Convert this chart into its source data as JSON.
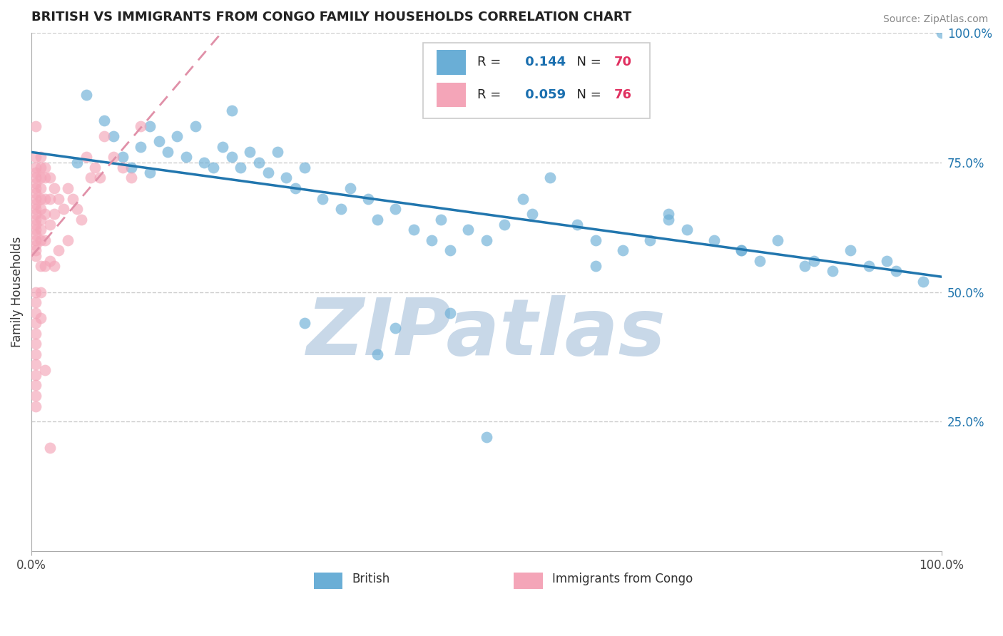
{
  "title": "BRITISH VS IMMIGRANTS FROM CONGO FAMILY HOUSEHOLDS CORRELATION CHART",
  "source_text": "Source: ZipAtlas.com",
  "ylabel": "Family Households",
  "xlim": [
    0,
    1
  ],
  "ylim": [
    0,
    1
  ],
  "british_color": "#6aaed6",
  "congo_color": "#f4a5b8",
  "british_R": 0.144,
  "british_N": 70,
  "congo_R": 0.059,
  "congo_N": 76,
  "legend_blue": "#1a6faf",
  "legend_red": "#e03060",
  "watermark": "ZIPatlas",
  "watermark_color": "#c8d8e8",
  "blue_line_color": "#2176ae",
  "pink_line_color": "#e090a8",
  "british_x": [
    0.05,
    0.08,
    0.09,
    0.1,
    0.11,
    0.12,
    0.13,
    0.14,
    0.15,
    0.16,
    0.17,
    0.18,
    0.19,
    0.2,
    0.21,
    0.22,
    0.23,
    0.24,
    0.25,
    0.26,
    0.27,
    0.28,
    0.29,
    0.3,
    0.32,
    0.34,
    0.35,
    0.37,
    0.38,
    0.4,
    0.42,
    0.44,
    0.45,
    0.46,
    0.48,
    0.5,
    0.52,
    0.55,
    0.57,
    0.6,
    0.62,
    0.65,
    0.68,
    0.7,
    0.72,
    0.75,
    0.78,
    0.8,
    0.82,
    0.85,
    0.88,
    0.9,
    0.92,
    0.95,
    0.98,
    1.0,
    0.06,
    0.13,
    0.22,
    0.3,
    0.38,
    0.46,
    0.54,
    0.62,
    0.7,
    0.78,
    0.86,
    0.94,
    0.5,
    0.4
  ],
  "british_y": [
    0.75,
    0.83,
    0.8,
    0.76,
    0.74,
    0.78,
    0.82,
    0.79,
    0.77,
    0.8,
    0.76,
    0.82,
    0.75,
    0.74,
    0.78,
    0.76,
    0.74,
    0.77,
    0.75,
    0.73,
    0.77,
    0.72,
    0.7,
    0.74,
    0.68,
    0.66,
    0.7,
    0.68,
    0.64,
    0.66,
    0.62,
    0.6,
    0.64,
    0.58,
    0.62,
    0.6,
    0.63,
    0.65,
    0.72,
    0.63,
    0.6,
    0.58,
    0.6,
    0.64,
    0.62,
    0.6,
    0.58,
    0.56,
    0.6,
    0.55,
    0.54,
    0.58,
    0.55,
    0.54,
    0.52,
    1.0,
    0.88,
    0.73,
    0.85,
    0.44,
    0.38,
    0.46,
    0.68,
    0.55,
    0.65,
    0.58,
    0.56,
    0.56,
    0.22,
    0.43
  ],
  "congo_x": [
    0.005,
    0.005,
    0.005,
    0.005,
    0.005,
    0.005,
    0.005,
    0.005,
    0.005,
    0.005,
    0.005,
    0.005,
    0.005,
    0.005,
    0.005,
    0.005,
    0.005,
    0.005,
    0.005,
    0.005,
    0.01,
    0.01,
    0.01,
    0.01,
    0.01,
    0.01,
    0.01,
    0.01,
    0.01,
    0.01,
    0.015,
    0.015,
    0.015,
    0.015,
    0.015,
    0.015,
    0.02,
    0.02,
    0.02,
    0.02,
    0.025,
    0.025,
    0.025,
    0.03,
    0.03,
    0.035,
    0.04,
    0.04,
    0.045,
    0.05,
    0.055,
    0.06,
    0.065,
    0.07,
    0.075,
    0.08,
    0.09,
    0.1,
    0.11,
    0.12,
    0.005,
    0.005,
    0.005,
    0.005,
    0.005,
    0.005,
    0.005,
    0.005,
    0.005,
    0.005,
    0.005,
    0.005,
    0.01,
    0.01,
    0.015,
    0.02
  ],
  "congo_y": [
    0.76,
    0.74,
    0.73,
    0.72,
    0.71,
    0.7,
    0.69,
    0.68,
    0.67,
    0.66,
    0.65,
    0.64,
    0.63,
    0.62,
    0.61,
    0.6,
    0.59,
    0.58,
    0.57,
    0.82,
    0.76,
    0.74,
    0.72,
    0.7,
    0.68,
    0.66,
    0.64,
    0.62,
    0.6,
    0.55,
    0.74,
    0.72,
    0.68,
    0.65,
    0.6,
    0.55,
    0.72,
    0.68,
    0.63,
    0.56,
    0.7,
    0.65,
    0.55,
    0.68,
    0.58,
    0.66,
    0.7,
    0.6,
    0.68,
    0.66,
    0.64,
    0.76,
    0.72,
    0.74,
    0.72,
    0.8,
    0.76,
    0.74,
    0.72,
    0.82,
    0.5,
    0.48,
    0.46,
    0.44,
    0.42,
    0.4,
    0.38,
    0.36,
    0.34,
    0.32,
    0.3,
    0.28,
    0.5,
    0.45,
    0.35,
    0.2
  ]
}
